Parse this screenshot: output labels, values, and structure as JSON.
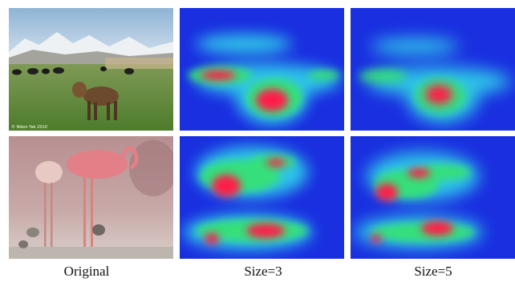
{
  "figure": {
    "columns": [
      {
        "caption": "Original"
      },
      {
        "caption": "Size=3"
      },
      {
        "caption": "Size=5"
      }
    ],
    "rows": [
      {
        "photo": "yak-calf-field-mountains",
        "watermark": "© Nikon Yak 2010"
      },
      {
        "photo": "flamingos-with-chicks"
      }
    ],
    "heatmap_colors": {
      "low": "#1a2fe0",
      "mid": "#2fc4e8",
      "green": "#36e07a",
      "high": "#ff1f4a"
    }
  }
}
